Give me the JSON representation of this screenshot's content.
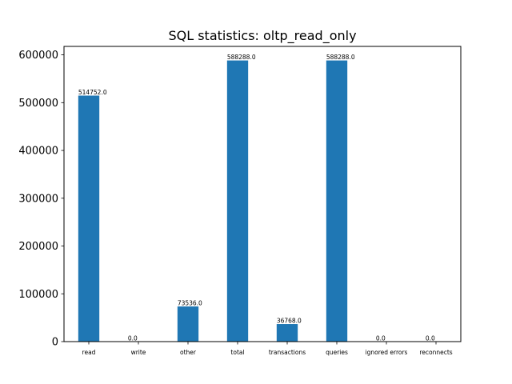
{
  "chart_data": {
    "type": "bar",
    "title": "SQL statistics: oltp_read_only",
    "xlabel": "",
    "ylabel": "",
    "categories": [
      "read",
      "write",
      "other",
      "total",
      "transactions",
      "queries",
      "ignored errors",
      "reconnects"
    ],
    "values": [
      514752.0,
      0.0,
      73536.0,
      588288.0,
      36768.0,
      588288.0,
      0.0,
      0.0
    ],
    "value_labels": [
      "514752.0",
      "0.0",
      "73536.0",
      "588288.0",
      "36768.0",
      "588288.0",
      "0.0",
      "0.0"
    ],
    "ylim": [
      0,
      617702
    ],
    "y_ticks": [
      0,
      100000,
      200000,
      300000,
      400000,
      500000,
      600000
    ],
    "y_tick_labels": [
      "0",
      "100000",
      "200000",
      "300000",
      "400000",
      "500000",
      "600000"
    ],
    "grid": false,
    "bar_color": "#1f77b4"
  }
}
